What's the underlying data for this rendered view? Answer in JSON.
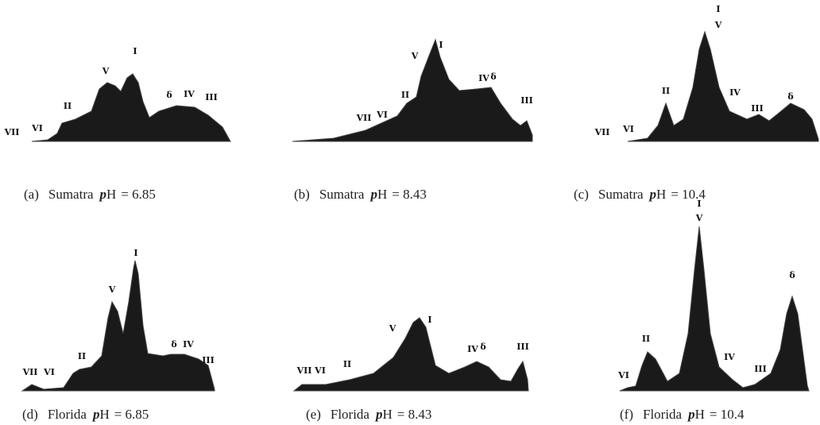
{
  "panels": [
    {
      "letter": "(a)",
      "source": "Sumatra",
      "ph": "pH",
      "value": "= 6.85",
      "peaks": [
        "VII",
        "VI",
        "II",
        "V",
        "I",
        "δ",
        "IV",
        "III"
      ]
    },
    {
      "letter": "(b)",
      "source": "Sumatra",
      "ph": "pH",
      "value": "= 8.43",
      "peaks": [
        "VII",
        "VI",
        "II",
        "V",
        "I",
        "IV",
        "δ",
        "III"
      ]
    },
    {
      "letter": "(c)",
      "source": "Sumatra",
      "ph": "pH",
      "value": "= 10.4",
      "peaks": [
        "VII",
        "VI",
        "II",
        "I",
        "V",
        "IV",
        "III",
        "δ"
      ]
    },
    {
      "letter": "(d)",
      "source": "Florida",
      "ph": "pH",
      "value": "= 6.85",
      "peaks": [
        "VII",
        "VI",
        "II",
        "V",
        "I",
        "δ",
        "IV",
        "III"
      ]
    },
    {
      "letter": "(e)",
      "source": "Florida",
      "ph": "pH",
      "value": "= 8.43",
      "peaks": [
        "VII",
        "VI",
        "II",
        "V",
        "I",
        "IV",
        "δ",
        "III"
      ]
    },
    {
      "letter": "(f)",
      "source": "Florida",
      "ph": "pH",
      "value": "= 10.4",
      "peaks": [
        "VI",
        "II",
        "I",
        "V",
        "IV",
        "III",
        "δ"
      ]
    }
  ]
}
